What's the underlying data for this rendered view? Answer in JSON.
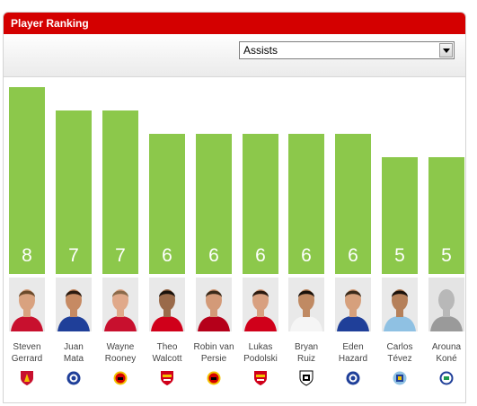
{
  "header": {
    "title": "Player Ranking"
  },
  "filter": {
    "selected": "Assists"
  },
  "chart_data": {
    "type": "bar",
    "ylabel": "",
    "categories": [
      "Steven Gerrard",
      "Juan Mata",
      "Wayne Rooney",
      "Theo Walcott",
      "Robin van Persie",
      "Lukas Podolski",
      "Bryan Ruiz",
      "Eden Hazard",
      "Carlos Tévez",
      "Arouna Koné"
    ],
    "values": [
      8,
      7,
      7,
      6,
      6,
      6,
      6,
      6,
      5,
      5
    ],
    "ylim": [
      0,
      8
    ]
  },
  "players": [
    {
      "first": "Steven",
      "last": "Gerrard",
      "value": "8",
      "club": "liverpool",
      "kit": "#c8102e",
      "skin": "#d9a27f",
      "hair": "#6b4a2b"
    },
    {
      "first": "Juan",
      "last": "Mata",
      "value": "7",
      "club": "chelsea",
      "kit": "#1f3f99",
      "skin": "#c68a63",
      "hair": "#2a1a10"
    },
    {
      "first": "Wayne",
      "last": "Rooney",
      "value": "7",
      "club": "man-utd",
      "kit": "#c8102e",
      "skin": "#e0a98a",
      "hair": "#8a6a4a"
    },
    {
      "first": "Theo",
      "last": "Walcott",
      "value": "6",
      "club": "arsenal",
      "kit": "#d0001a",
      "skin": "#9a6a4a",
      "hair": "#1a120c"
    },
    {
      "first": "Robin van",
      "last": "Persie",
      "value": "6",
      "club": "man-utd",
      "kit": "#b5001a",
      "skin": "#d39a78",
      "hair": "#3a2a1a"
    },
    {
      "first": "Lukas",
      "last": "Podolski",
      "value": "6",
      "club": "arsenal",
      "kit": "#d0001a",
      "skin": "#d8a080",
      "hair": "#2a1a10"
    },
    {
      "first": "Bryan",
      "last": "Ruiz",
      "value": "6",
      "club": "fulham",
      "kit": "#f5f5f5",
      "skin": "#c08a63",
      "hair": "#1a120c"
    },
    {
      "first": "Eden",
      "last": "Hazard",
      "value": "6",
      "club": "chelsea",
      "kit": "#1f3f99",
      "skin": "#d6a07c",
      "hair": "#3a2a1a"
    },
    {
      "first": "Carlos",
      "last": "Tévez",
      "value": "5",
      "club": "man-city",
      "kit": "#8fc1e3",
      "skin": "#b5805a",
      "hair": "#1a120c"
    },
    {
      "first": "Arouna",
      "last": "Koné",
      "value": "5",
      "club": "wigan",
      "kit": "#9a9a9a",
      "skin": "#b8b8b8",
      "hair": "#b8b8b8"
    }
  ],
  "colors": {
    "bar": "#8cc84b",
    "header": "#d40000"
  }
}
